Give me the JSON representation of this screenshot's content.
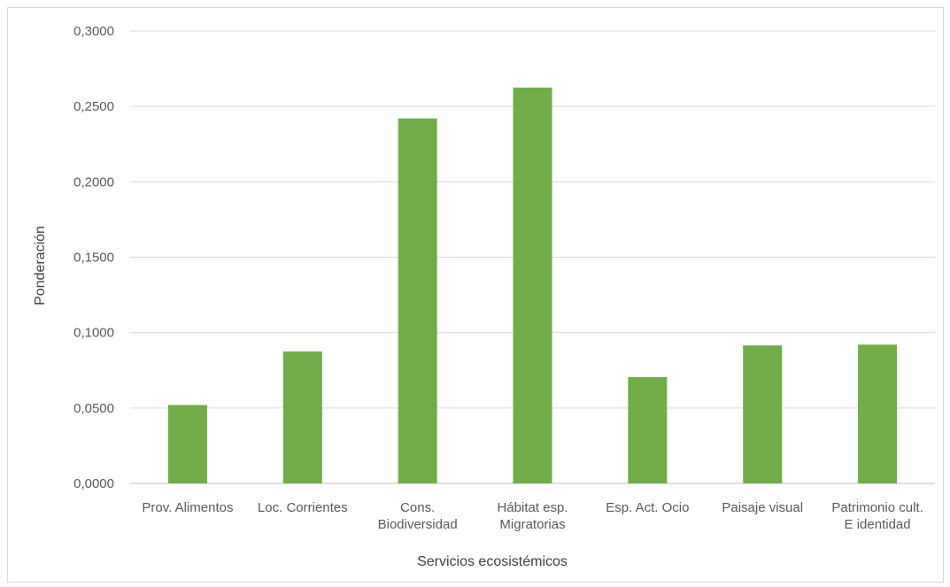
{
  "chart_data": {
    "type": "bar",
    "title": "",
    "xlabel": "Servicios ecosistémicos",
    "ylabel": "Ponderación",
    "ylim": [
      0,
      0.3
    ],
    "y_ticks": [
      "0,0000",
      "0,0500",
      "0,1000",
      "0,1500",
      "0,2000",
      "0,2500",
      "0,3000"
    ],
    "grid": true,
    "legend": "none",
    "bar_color": "#70ad47",
    "categories": [
      [
        "Prov. Alimentos"
      ],
      [
        "Loc. Corrientes"
      ],
      [
        "Cons.",
        "Biodiversidad"
      ],
      [
        "Hábitat esp.",
        "Migratorias"
      ],
      [
        "Esp. Act. Ocio"
      ],
      [
        "Paisaje visual"
      ],
      [
        "Patrimonio cult.",
        "E identidad"
      ]
    ],
    "values": [
      0.052,
      0.0875,
      0.242,
      0.2625,
      0.0705,
      0.0915,
      0.092
    ]
  }
}
